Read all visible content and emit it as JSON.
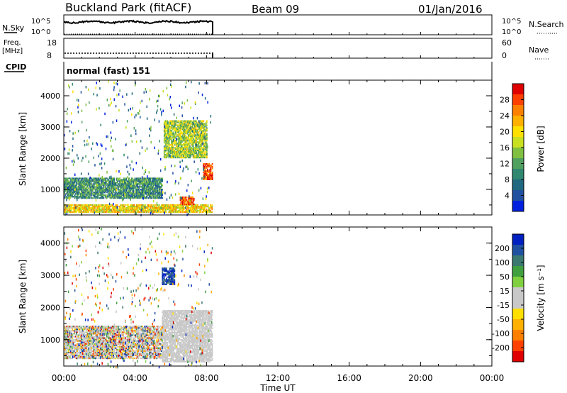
{
  "header": {
    "station": "Buckland Park (fitACF)",
    "beam": "Beam 09",
    "date": "01/Jan/2016"
  },
  "strips": {
    "nsky_label": "N.Sky",
    "nsky_ticks": [
      "10^5",
      "10^0"
    ],
    "nsearch_label": "N.Search",
    "freq_label": "Freq.",
    "freq_unit": "[MHz]",
    "freq_ticks": [
      "18",
      "8"
    ],
    "nave_label": "Nave",
    "nave_ticks": [
      "60",
      "0"
    ],
    "cpid_label": "CPID",
    "cpid_value": "normal (fast) 151"
  },
  "panels": {
    "ylabel": "Slant Range [km]",
    "xlabel": "Time UT",
    "y_ticks": [
      "4000",
      "3000",
      "2000",
      "1000"
    ],
    "x_ticks": [
      "00:00",
      "04:00",
      "08:00",
      "12:00",
      "16:00",
      "20:00",
      "00:00"
    ]
  },
  "colorbars": {
    "power": {
      "label": "Power [dB]",
      "ticks": [
        "28",
        "24",
        "20",
        "16",
        "12",
        "8",
        "4"
      ],
      "colors": [
        "#e00000",
        "#ff4000",
        "#ff8000",
        "#ffb000",
        "#ffe000",
        "#c8e020",
        "#80c040",
        "#50a060",
        "#308870",
        "#206880",
        "#2050a0",
        "#0020e0"
      ]
    },
    "velocity": {
      "label": "Velocity [m s⁻¹]",
      "ticks": [
        "200",
        "100",
        "50",
        "15",
        "-15",
        "-50",
        "-100",
        "-200"
      ],
      "colors": [
        "#0020c0",
        "#2050a0",
        "#3a7870",
        "#40a040",
        "#80d040",
        "#c8c8c8",
        "#c8c8c8",
        "#ffe000",
        "#ffb000",
        "#ff8000",
        "#ff4000",
        "#e00000"
      ]
    }
  },
  "chart_data": [
    {
      "type": "heatmap",
      "title": "",
      "xlabel": "Time UT",
      "ylabel": "Slant Range [km]",
      "x_range_hours": [
        0,
        24
      ],
      "ylim": [
        180,
        4500
      ],
      "data_coverage_hours": [
        0,
        8.3
      ],
      "colorbar": "Power [dB]",
      "colorbar_range": [
        0,
        32
      ],
      "features": [
        {
          "desc": "near-range band",
          "t": [
            0,
            8.3
          ],
          "range": [
            250,
            500
          ],
          "power": 20
        },
        {
          "desc": "band",
          "t": [
            0,
            5.5
          ],
          "range": [
            700,
            1350
          ],
          "power": 10
        },
        {
          "desc": "strong echo",
          "t": [
            6.5,
            7.3
          ],
          "range": [
            500,
            750
          ],
          "power": 28
        },
        {
          "desc": "strong echo",
          "t": [
            7.8,
            8.3
          ],
          "range": [
            1300,
            1800
          ],
          "power": 28
        },
        {
          "desc": "rising trace",
          "t": [
            5.6,
            8.0
          ],
          "range": [
            2000,
            3200
          ],
          "power": 16
        }
      ]
    },
    {
      "type": "heatmap",
      "title": "",
      "xlabel": "Time UT",
      "ylabel": "Slant Range [km]",
      "x_range_hours": [
        0,
        24
      ],
      "ylim": [
        180,
        4500
      ],
      "data_coverage_hours": [
        0,
        8.3
      ],
      "colorbar": "Velocity [m s⁻¹]",
      "colorbar_range": [
        -250,
        250
      ],
      "features": [
        {
          "desc": "ground scatter",
          "t": [
            5.5,
            8.3
          ],
          "range": [
            300,
            1900
          ],
          "velocity": 0
        },
        {
          "desc": "mixed",
          "t": [
            0,
            5.5
          ],
          "range": [
            400,
            1400
          ],
          "velocity": 0
        },
        {
          "desc": "positive patch",
          "t": [
            5.5,
            6.2
          ],
          "range": [
            2700,
            3200
          ],
          "velocity": 200
        }
      ]
    }
  ]
}
